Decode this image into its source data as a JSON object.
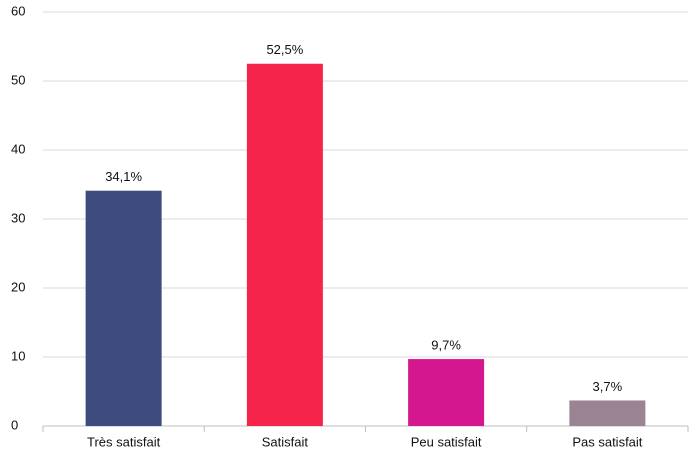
{
  "chart_data": {
    "type": "bar",
    "categories": [
      "Très satisfait",
      "Satisfait",
      "Peu satisfait",
      "Pas satisfait"
    ],
    "values": [
      34.1,
      52.5,
      9.7,
      3.7
    ],
    "value_labels": [
      "34,1%",
      "52,5%",
      "9,7%",
      "3,7%"
    ],
    "colors": [
      "#3d4b7d",
      "#f5244a",
      "#d4178f",
      "#9a8494"
    ],
    "ylim": [
      0,
      60
    ],
    "yticks": [
      0,
      10,
      20,
      30,
      40,
      50,
      60
    ],
    "grid": true
  }
}
